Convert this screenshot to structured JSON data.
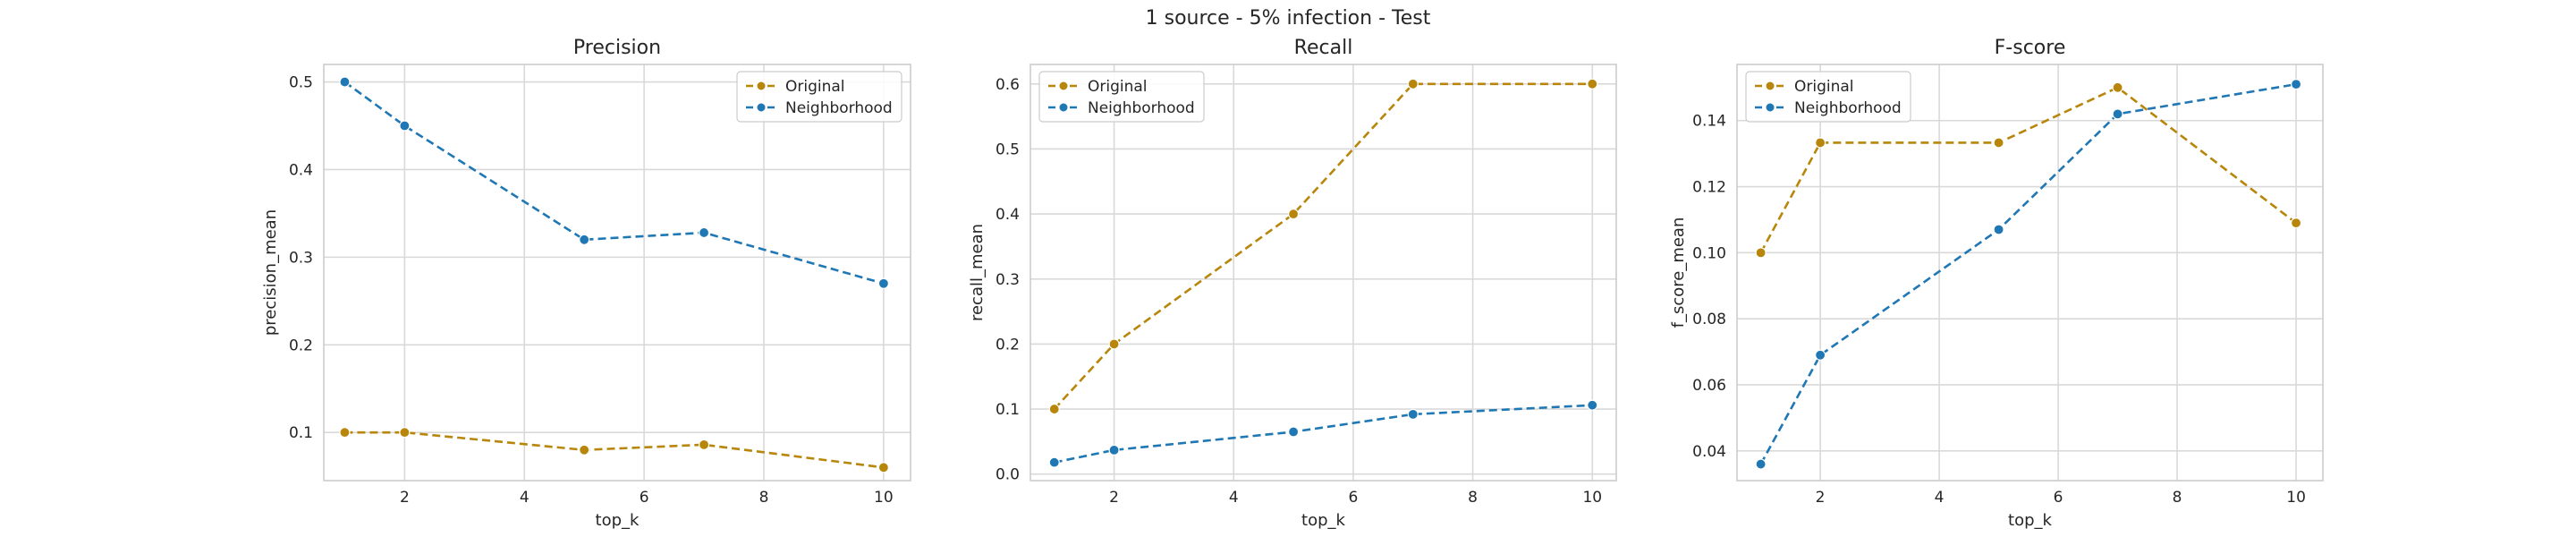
{
  "figure": {
    "suptitle": "1 source - 5% infection - Test"
  },
  "chart_data": [
    {
      "type": "line",
      "title": "Precision",
      "xlabel": "top_k",
      "ylabel": "precision_mean",
      "x": [
        1,
        2,
        5,
        7,
        10
      ],
      "xlim": [
        0.65,
        10.45
      ],
      "ylim": [
        0.045,
        0.52
      ],
      "xticks": [
        2,
        4,
        6,
        8,
        10
      ],
      "yticks": [
        0.1,
        0.2,
        0.3,
        0.4,
        0.5
      ],
      "legend_position": "top-right",
      "grid": true,
      "series": [
        {
          "name": "Original",
          "color": "#b8860b",
          "values": [
            0.1,
            0.1,
            0.08,
            0.086,
            0.06
          ]
        },
        {
          "name": "Neighborhood",
          "color": "#1f77b4",
          "values": [
            0.5,
            0.45,
            0.32,
            0.328,
            0.27
          ]
        }
      ]
    },
    {
      "type": "line",
      "title": "Recall",
      "xlabel": "top_k",
      "ylabel": "recall_mean",
      "x": [
        1,
        2,
        5,
        7,
        10
      ],
      "xlim": [
        0.6,
        10.4
      ],
      "ylim": [
        -0.01,
        0.63
      ],
      "xticks": [
        2,
        4,
        6,
        8,
        10
      ],
      "yticks": [
        0.0,
        0.1,
        0.2,
        0.3,
        0.4,
        0.5,
        0.6
      ],
      "legend_position": "top-left",
      "grid": true,
      "series": [
        {
          "name": "Original",
          "color": "#b8860b",
          "values": [
            0.1,
            0.2,
            0.4,
            0.6,
            0.6
          ]
        },
        {
          "name": "Neighborhood",
          "color": "#1f77b4",
          "values": [
            0.018,
            0.037,
            0.065,
            0.092,
            0.106
          ]
        }
      ]
    },
    {
      "type": "line",
      "title": "F-score",
      "xlabel": "top_k",
      "ylabel": "f_score_mean",
      "x": [
        1,
        2,
        5,
        7,
        10
      ],
      "xlim": [
        0.6,
        10.45
      ],
      "ylim": [
        0.031,
        0.157
      ],
      "xticks": [
        2,
        4,
        6,
        8,
        10
      ],
      "yticks": [
        0.04,
        0.06,
        0.08,
        0.1,
        0.12,
        0.14
      ],
      "legend_position": "top-left",
      "grid": true,
      "series": [
        {
          "name": "Original",
          "color": "#b8860b",
          "values": [
            0.1,
            0.1333,
            0.1333,
            0.15,
            0.109
          ]
        },
        {
          "name": "Neighborhood",
          "color": "#1f77b4",
          "values": [
            0.036,
            0.069,
            0.107,
            0.142,
            0.151
          ]
        }
      ]
    }
  ]
}
